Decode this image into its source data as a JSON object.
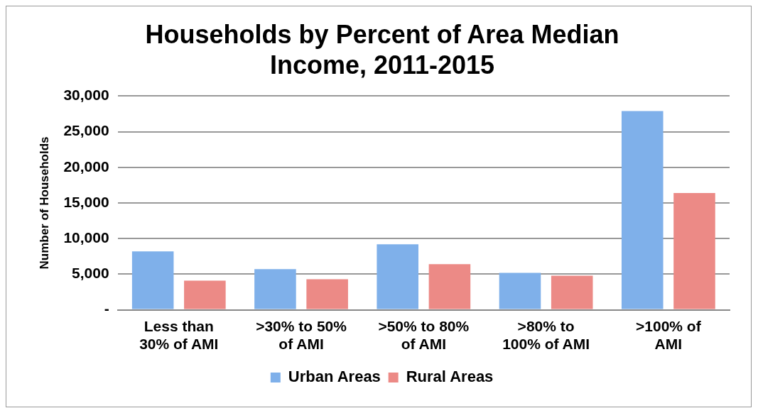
{
  "chart_data": {
    "type": "bar",
    "title": "Households by Percent of Area Median Income, 2011-2015",
    "ylabel": "Number of Households",
    "categories": [
      "Less than 30% of AMI",
      ">30% to 50% of AMI",
      ">50% to 80% of AMI",
      ">80% to 100% of AMI",
      ">100% of AMI"
    ],
    "series": [
      {
        "name": "Urban Areas",
        "color": "#7fb0ea",
        "values": [
          8200,
          5700,
          9200,
          5200,
          27900
        ]
      },
      {
        "name": "Rural Areas",
        "color": "#ec8a86",
        "values": [
          4100,
          4300,
          6400,
          4800,
          16400
        ]
      }
    ],
    "ylim": [
      0,
      30000
    ],
    "yticks": [
      {
        "value": 0,
        "label": "-"
      },
      {
        "value": 5000,
        "label": "5,000"
      },
      {
        "value": 10000,
        "label": "10,000"
      },
      {
        "value": 15000,
        "label": "15,000"
      },
      {
        "value": 20000,
        "label": "20,000"
      },
      {
        "value": 25000,
        "label": "25,000"
      },
      {
        "value": 30000,
        "label": "30,000"
      }
    ],
    "grid": "y",
    "legend": "bottom"
  }
}
